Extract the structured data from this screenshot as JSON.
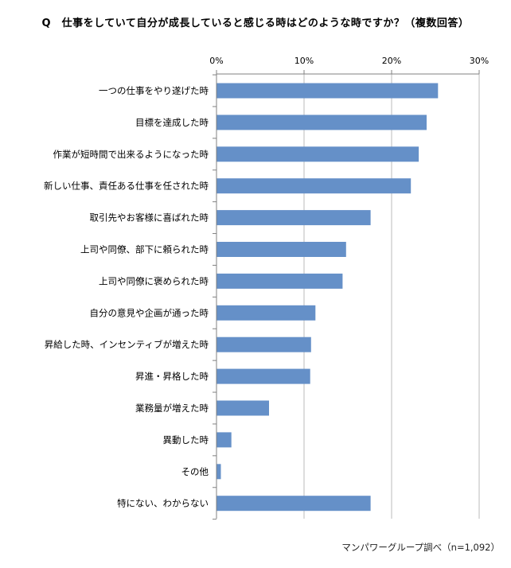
{
  "chart_data": {
    "type": "bar",
    "orientation": "horizontal",
    "title": "Q　仕事をしていて自分が成長していると感じる時はどのような時ですか？（複数回答）",
    "categories": [
      "一つの仕事をやり遂げた時",
      "目標を達成した時",
      "作業が短時間で出来るようになった時",
      "新しい仕事、責任ある仕事を任された時",
      "取引先やお客様に喜ばれた時",
      "上司や同僚、部下に頼られた時",
      "上司や同僚に褒められた時",
      "自分の意見や企画が通った時",
      "昇給した時、インセンティブが増えた時",
      "昇進・昇格した時",
      "業務量が増えた時",
      "異動した時",
      "その他",
      "特にない、わからない"
    ],
    "values": [
      25.3,
      24.0,
      23.1,
      22.2,
      17.6,
      14.8,
      14.4,
      11.3,
      10.8,
      10.7,
      6.0,
      1.7,
      0.5,
      17.6
    ],
    "xlim": [
      0,
      30
    ],
    "ticks": [
      0,
      10,
      20,
      30
    ],
    "tick_format": "{v}%",
    "grid": true,
    "bar_color": "#6590C8",
    "grid_color": "#BBBBBB",
    "source": "マンパワーグループ調べ（n=1,092）"
  }
}
